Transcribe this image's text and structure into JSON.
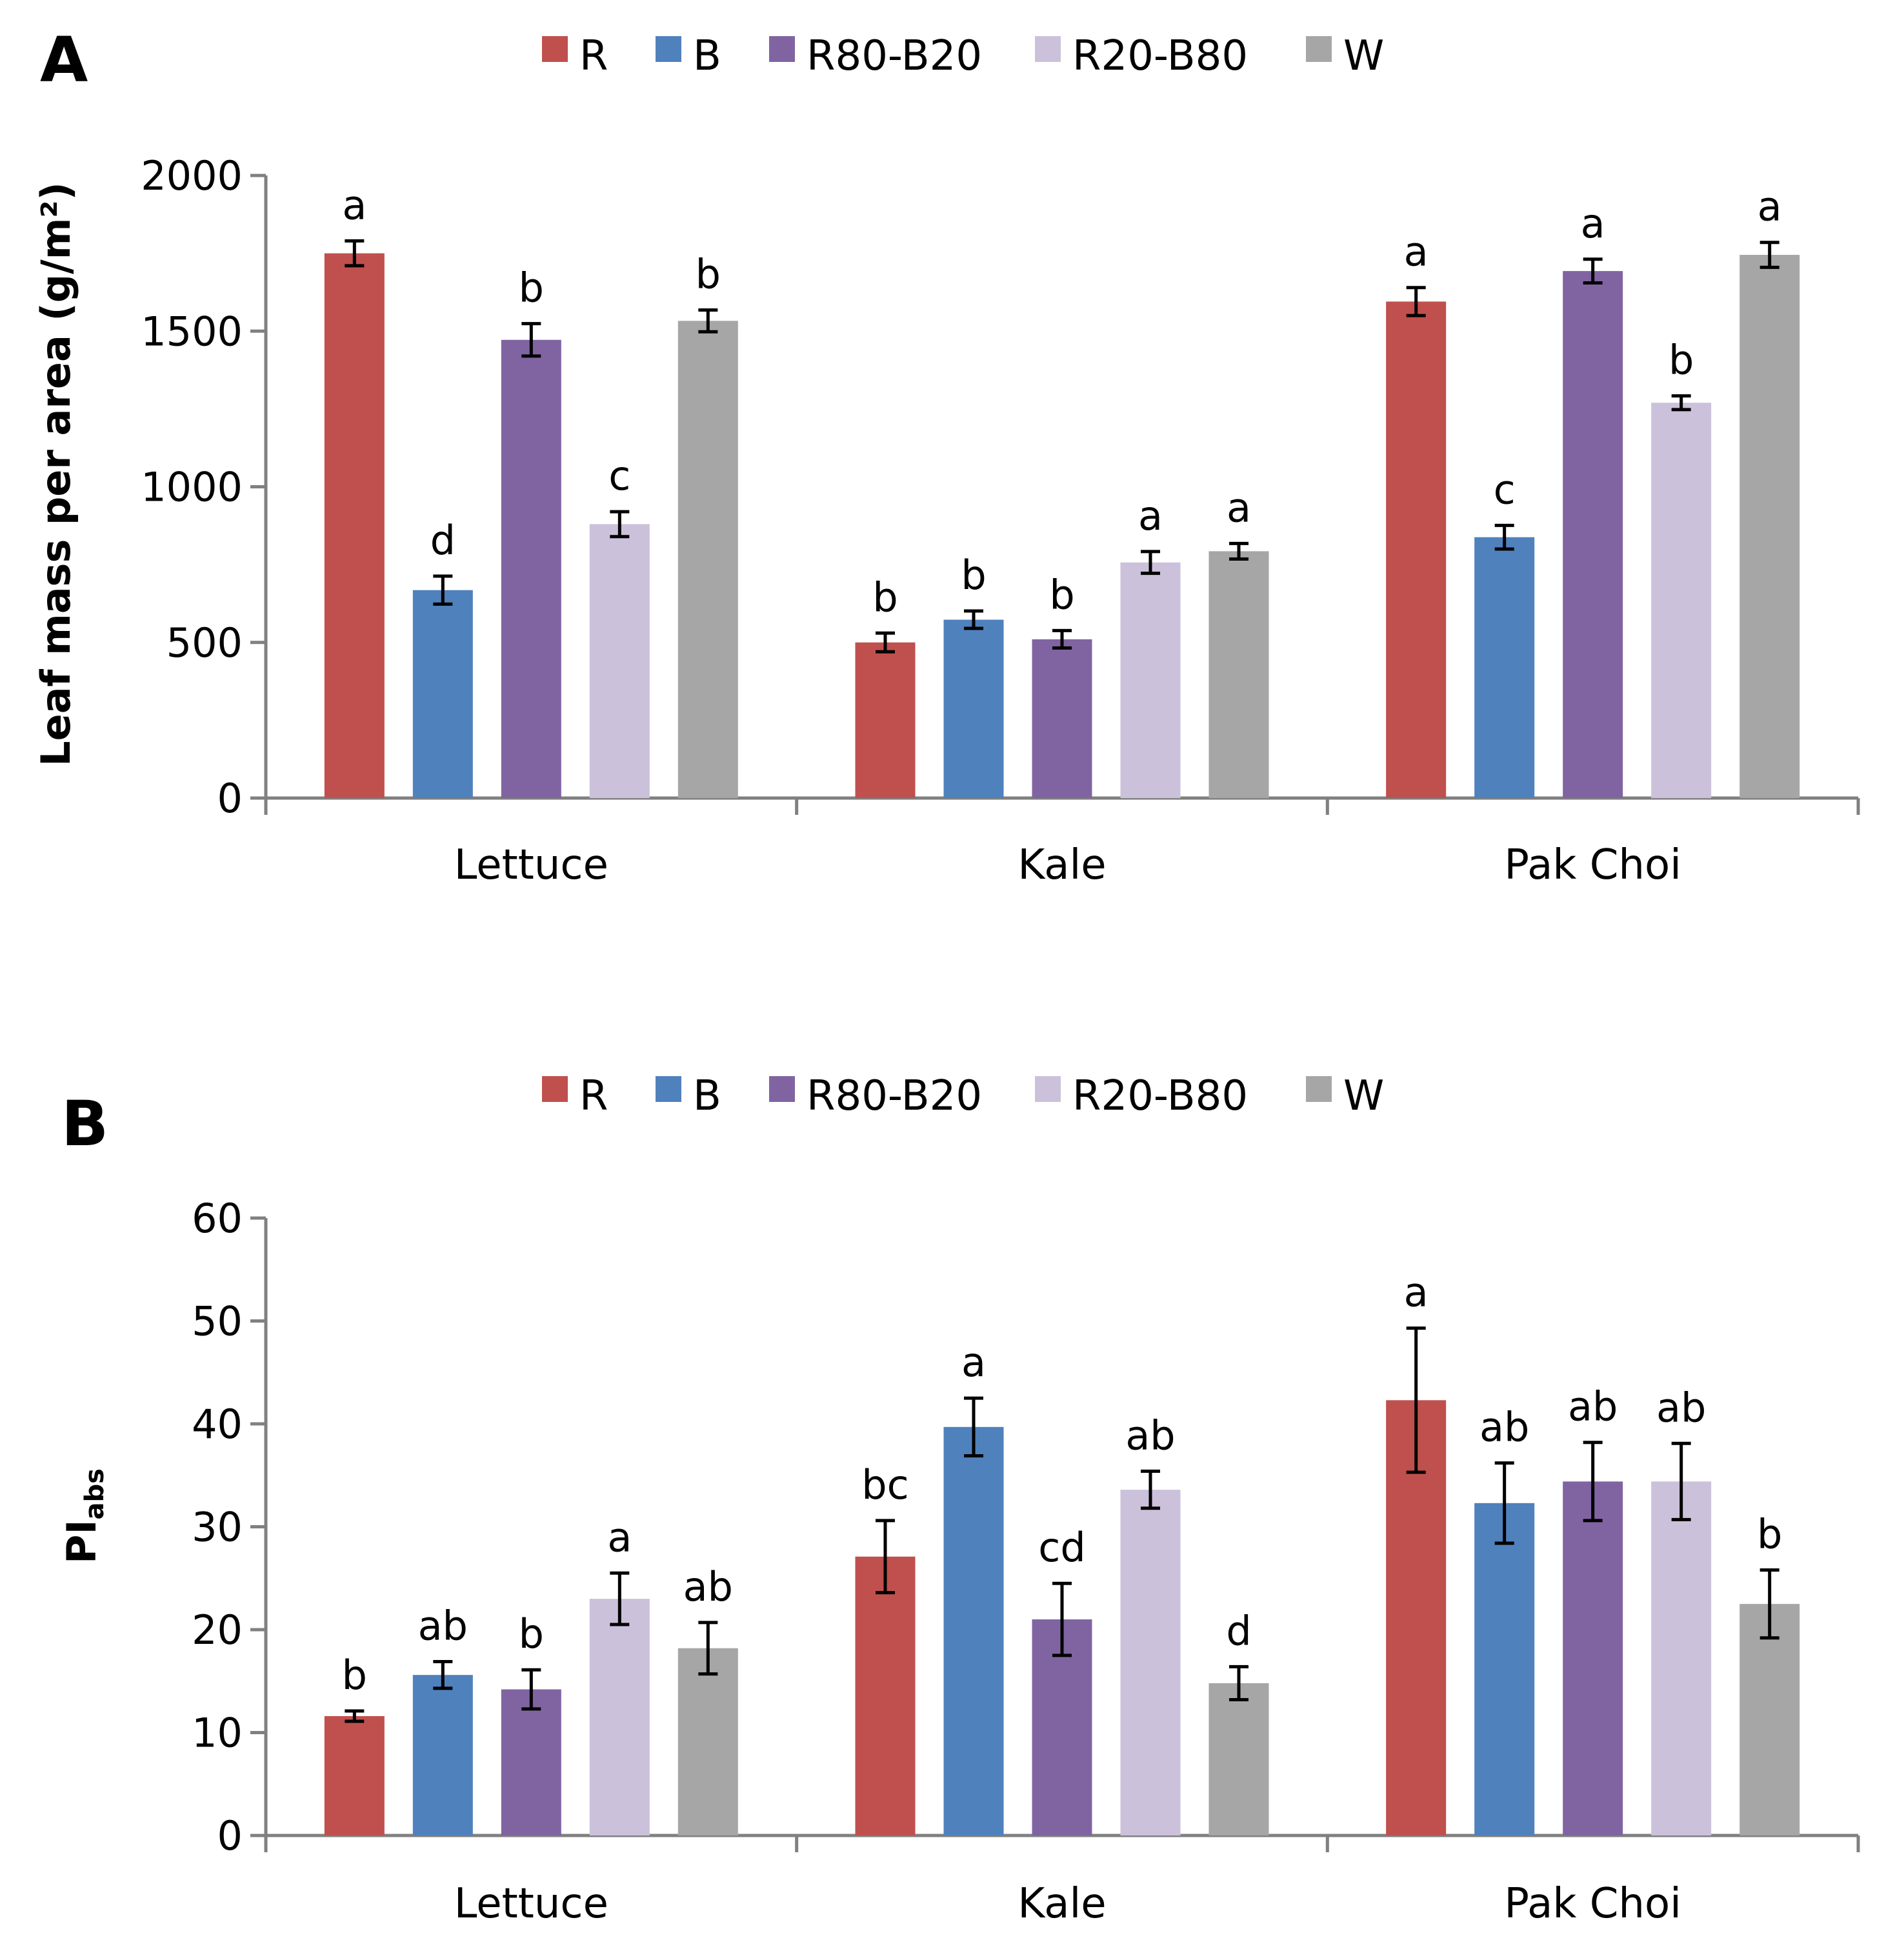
{
  "colors": {
    "R": "#c0504d",
    "B": "#4f81bd",
    "R80-B20": "#8064a2",
    "R20-B80": "#ccc1da",
    "W": "#a6a6a6",
    "axis": "#808080",
    "errorbar": "#000000"
  },
  "chart_data": [
    {
      "type": "bar",
      "panel": "A",
      "ylabel": "Leaf mass per area (g/m²)",
      "ylim": [
        0,
        2000
      ],
      "yticks": [
        0,
        500,
        1000,
        1500,
        2000
      ],
      "categories": [
        "Lettuce",
        "Kale",
        "Pak Choi"
      ],
      "legend": [
        "R",
        "B",
        "R80-B20",
        "R20-B80",
        "W"
      ],
      "legend_position": "top",
      "series": [
        {
          "name": "R",
          "values": [
            1750,
            500,
            1595
          ],
          "errors": [
            40,
            30,
            45
          ],
          "letters": [
            "a",
            "b",
            "a"
          ]
        },
        {
          "name": "B",
          "values": [
            668,
            573,
            838
          ],
          "errors": [
            45,
            28,
            38
          ],
          "letters": [
            "d",
            "b",
            "c"
          ]
        },
        {
          "name": "R80-B20",
          "values": [
            1472,
            510,
            1693
          ],
          "errors": [
            52,
            28,
            38
          ],
          "letters": [
            "b",
            "b",
            "a"
          ]
        },
        {
          "name": "R20-B80",
          "values": [
            880,
            757,
            1270
          ],
          "errors": [
            40,
            35,
            22
          ],
          "letters": [
            "c",
            "a",
            "b"
          ]
        },
        {
          "name": "W",
          "values": [
            1533,
            793,
            1745
          ],
          "errors": [
            35,
            25,
            40
          ],
          "letters": [
            "b",
            "a",
            "a"
          ]
        }
      ]
    },
    {
      "type": "bar",
      "panel": "B",
      "ylabel_main": "PI",
      "ylabel_sub": "abs",
      "ylim": [
        0,
        60
      ],
      "yticks": [
        0,
        10,
        20,
        30,
        40,
        50,
        60
      ],
      "categories": [
        "Lettuce",
        "Kale",
        "Pak Choi"
      ],
      "legend": [
        "R",
        "B",
        "R80-B20",
        "R20-B80",
        "W"
      ],
      "legend_position": "top",
      "series": [
        {
          "name": "R",
          "values": [
            11.6,
            27.1,
            42.3
          ],
          "errors": [
            0.5,
            3.5,
            7.0
          ],
          "letters": [
            "b",
            "bc",
            "a"
          ]
        },
        {
          "name": "B",
          "values": [
            15.6,
            39.7,
            32.3
          ],
          "errors": [
            1.3,
            2.8,
            3.9
          ],
          "letters": [
            "ab",
            "a",
            "ab"
          ]
        },
        {
          "name": "R80-B20",
          "values": [
            14.2,
            21.0,
            34.4
          ],
          "errors": [
            1.9,
            3.5,
            3.8
          ],
          "letters": [
            "b",
            "cd",
            "ab"
          ]
        },
        {
          "name": "R20-B80",
          "values": [
            23.0,
            33.6,
            34.4
          ],
          "errors": [
            2.5,
            1.8,
            3.7
          ],
          "letters": [
            "a",
            "ab",
            "ab"
          ]
        },
        {
          "name": "W",
          "values": [
            18.2,
            14.8,
            22.5
          ],
          "errors": [
            2.5,
            1.6,
            3.3
          ],
          "letters": [
            "ab",
            "d",
            "b"
          ]
        }
      ]
    }
  ]
}
